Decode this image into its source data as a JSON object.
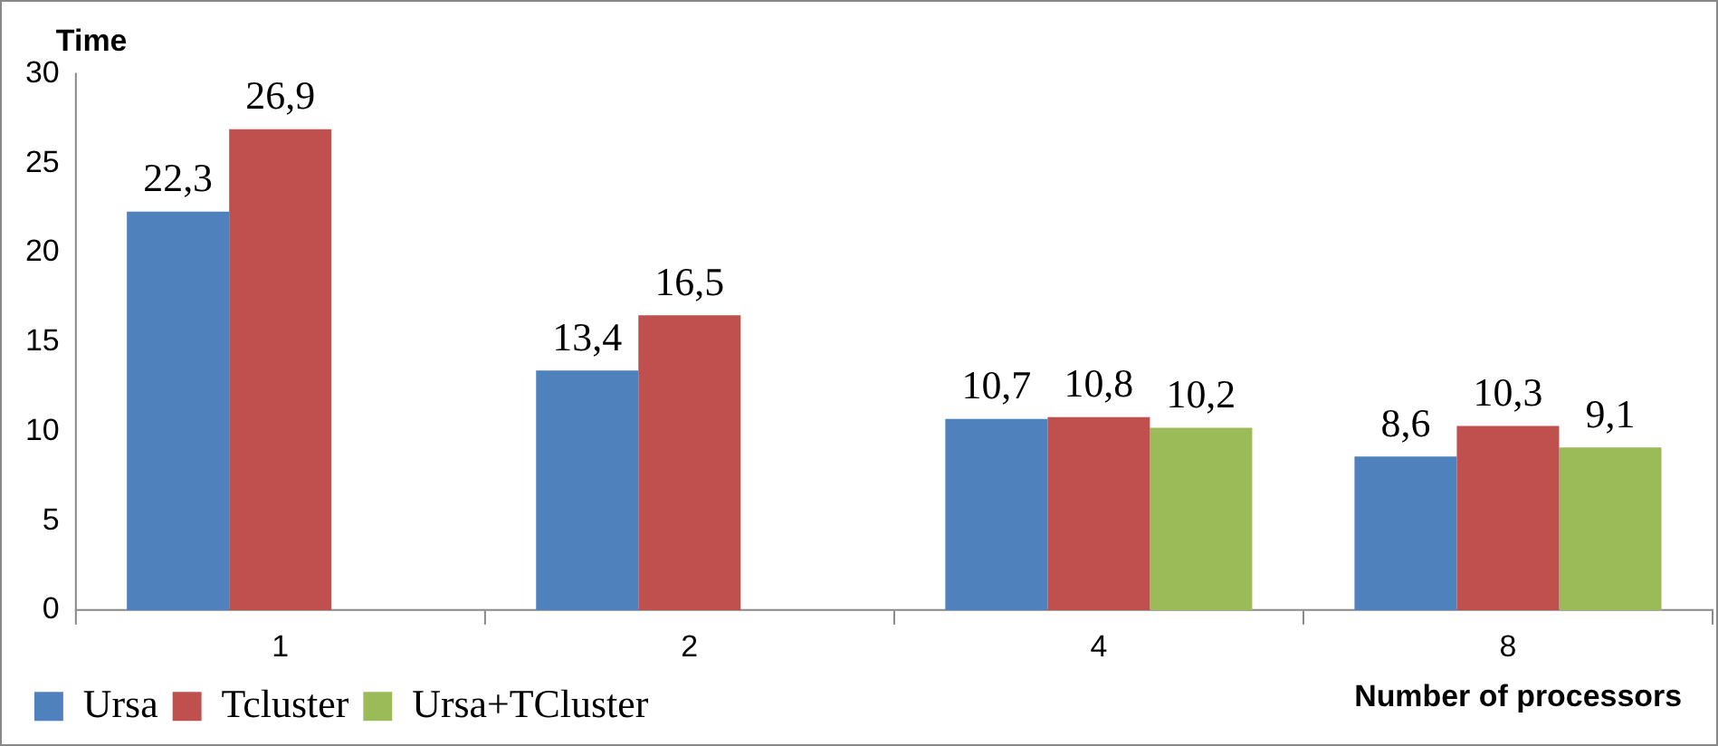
{
  "chart_data": {
    "type": "bar",
    "ylabel": "Time",
    "xlabel": "Number of processors",
    "categories": [
      "1",
      "2",
      "4",
      "8"
    ],
    "series": [
      {
        "name": "Ursa",
        "color": "#4f81bd",
        "values": [
          22.3,
          13.4,
          10.7,
          8.6
        ],
        "value_labels": [
          "22,3",
          "13,4",
          "10,7",
          "8,6"
        ]
      },
      {
        "name": "Tcluster",
        "color": "#c0504d",
        "values": [
          26.9,
          16.5,
          10.8,
          10.3
        ],
        "value_labels": [
          "26,9",
          "16,5",
          "10,8",
          "10,3"
        ]
      },
      {
        "name": "Ursa+TCluster",
        "color": "#9bbb59",
        "values": [
          null,
          null,
          10.2,
          9.1
        ],
        "value_labels": [
          null,
          null,
          "10,2",
          "9,1"
        ]
      }
    ],
    "ylim": [
      0,
      30
    ],
    "yticks": [
      0,
      5,
      10,
      15,
      20,
      25,
      30
    ],
    "grid": false,
    "legend": "bottom left"
  }
}
